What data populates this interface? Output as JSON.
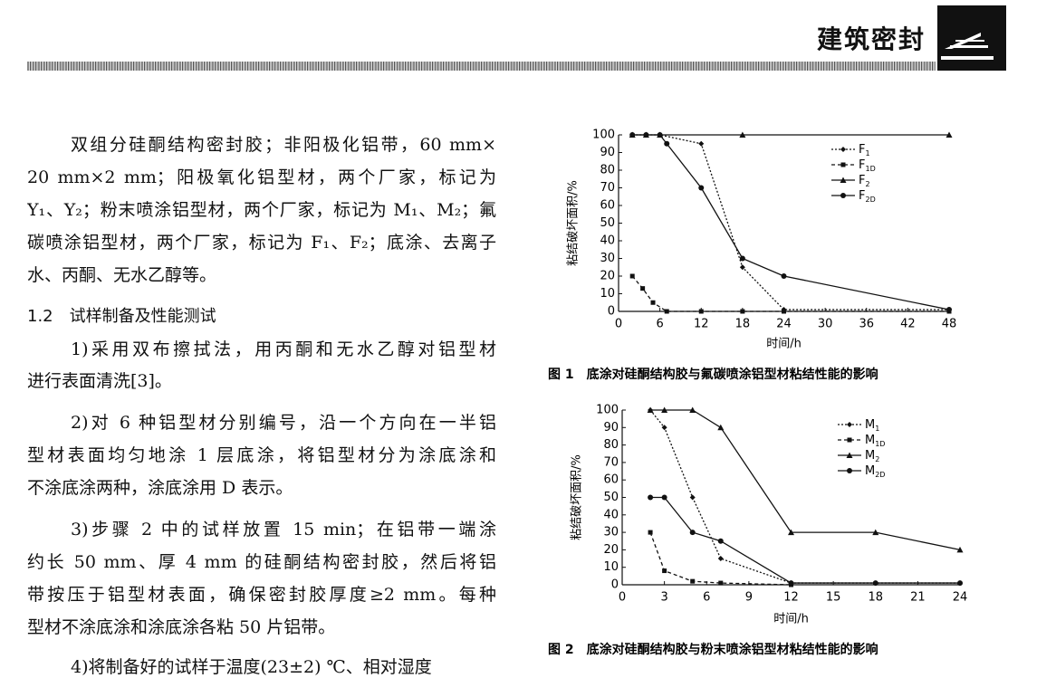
{
  "header": {
    "title": "建筑密封"
  },
  "body": {
    "lines": [
      "双组分硅酮结构密封胶；非阳极化铝带，60 mm×",
      "20 mm×2 mm；阳极氧化铝型材，两个厂家，标记为",
      "Y₁、Y₂；粉末喷涂铝型材，两个厂家，标记为 M₁、M₂；氟",
      "碳喷涂铝型材，两个厂家，标记为 F₁、F₂；底涂、去离子",
      "水、丙酮、无水乙醇等。",
      "1.2　试样制备及性能测试",
      "1)采用双布擦拭法，用丙酮和无水乙醇对铝型材",
      "进行表面清洗[3]。",
      "2)对 6 种铝型材分别编号，沿一个方向在一半铝",
      "型材表面均匀地涂 1 层底涂，将铝型材分为涂底涂和",
      "不涂底涂两种，涂底涂用 D 表示。",
      "3)步骤 2 中的试样放置 15 min；在铝带一端涂",
      "约长 50 mm、厚 4 mm 的硅酮结构密封胶，然后将铝",
      "带按压于铝型材表面，确保密封胶厚度≥2 mm。每种",
      "型材不涂底涂和涂底涂各粘 50 片铝带。",
      "4)将制备好的试样于温度(23±2) ℃、相对湿度"
    ]
  },
  "chart_data": [
    {
      "type": "line",
      "caption": "图 1　底涂对硅酮结构胶与氟碳喷涂铝型材粘结性能的影响",
      "xlabel": "时间/h",
      "ylabel": "粘结破坏面积/%",
      "xlim": [
        0,
        48
      ],
      "xticks": [
        0,
        6,
        12,
        18,
        24,
        30,
        36,
        42,
        48
      ],
      "ylim": [
        0,
        100
      ],
      "yticks": [
        0,
        10,
        20,
        30,
        40,
        50,
        60,
        70,
        80,
        90,
        100
      ],
      "series": [
        {
          "name": "F1",
          "color": "#111",
          "marker": "diamond",
          "line_style": "dotted",
          "x": [
            2,
            4,
            6,
            12,
            18,
            24,
            48
          ],
          "values": [
            100,
            100,
            100,
            95,
            25,
            1,
            1
          ]
        },
        {
          "name": "F1D",
          "color": "#111",
          "marker": "square",
          "line_style": "dashed",
          "x": [
            2,
            3.5,
            5,
            7,
            12,
            18,
            24,
            48
          ],
          "values": [
            20,
            13,
            5,
            0,
            0,
            0,
            0,
            0
          ]
        },
        {
          "name": "F2",
          "color": "#111",
          "marker": "triangle",
          "line_style": "solid",
          "x": [
            2,
            4,
            6,
            18,
            48
          ],
          "values": [
            100,
            100,
            100,
            100,
            100
          ]
        },
        {
          "name": "F2D",
          "color": "#111",
          "marker": "circle",
          "line_style": "solid",
          "x": [
            2,
            4,
            6,
            7,
            12,
            18,
            24,
            48
          ],
          "values": [
            100,
            100,
            100,
            95,
            70,
            30,
            20,
            1
          ]
        }
      ]
    },
    {
      "type": "line",
      "caption": "图 2　底涂对硅酮结构胶与粉末喷涂铝型材粘结性能的影响",
      "xlabel": "时间/h",
      "ylabel": "粘结破坏面积/%",
      "xlim": [
        0,
        24
      ],
      "xticks": [
        0,
        3,
        6,
        9,
        12,
        15,
        18,
        21,
        24
      ],
      "ylim": [
        0,
        100
      ],
      "yticks": [
        0,
        10,
        20,
        30,
        40,
        50,
        60,
        70,
        80,
        90,
        100
      ],
      "series": [
        {
          "name": "M1",
          "color": "#111",
          "marker": "diamond",
          "line_style": "dotted",
          "x": [
            2,
            3,
            5,
            7,
            12,
            24
          ],
          "values": [
            100,
            90,
            50,
            15,
            1,
            1
          ]
        },
        {
          "name": "M1D",
          "color": "#111",
          "marker": "square",
          "line_style": "dashed",
          "x": [
            2,
            3,
            5,
            7,
            12
          ],
          "values": [
            30,
            8,
            2,
            1,
            0
          ]
        },
        {
          "name": "M2",
          "color": "#111",
          "marker": "triangle",
          "line_style": "solid",
          "x": [
            2,
            3,
            5,
            7,
            12,
            18,
            24
          ],
          "values": [
            100,
            100,
            100,
            90,
            30,
            30,
            20
          ]
        },
        {
          "name": "M2D",
          "color": "#111",
          "marker": "circle",
          "line_style": "solid",
          "x": [
            2,
            3,
            5,
            7,
            12,
            18,
            24
          ],
          "values": [
            50,
            50,
            30,
            25,
            1,
            1,
            1
          ]
        }
      ]
    }
  ]
}
